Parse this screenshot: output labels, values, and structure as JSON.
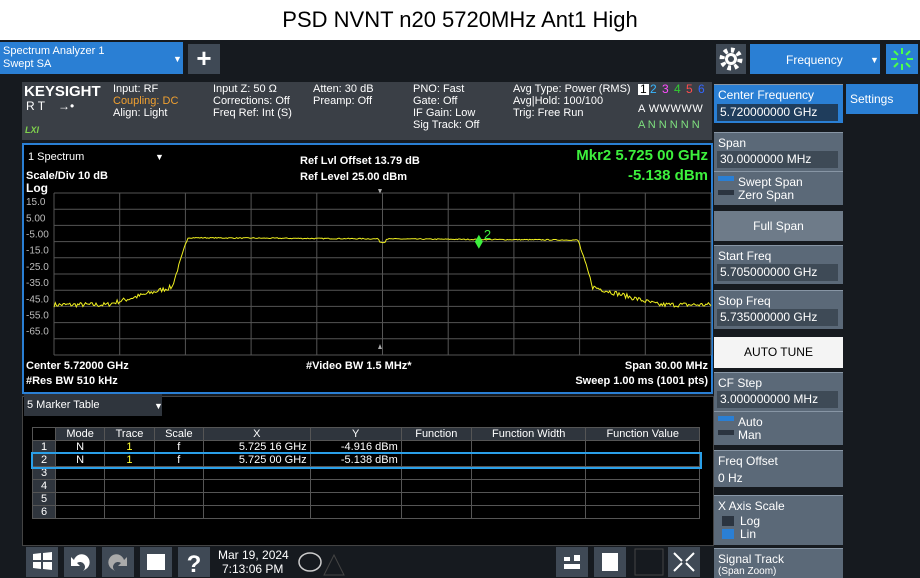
{
  "title": "PSD NVNT n20 5720MHz Ant1 High",
  "toolbar": {
    "tab_line1": "Spectrum Analyzer 1",
    "tab_line2": "Swept SA",
    "plus": "+",
    "menu": "Frequency"
  },
  "info": {
    "brand": "KEYSIGHT",
    "rt": "R  T",
    "lxi": "LXI",
    "col1": [
      "Input: RF",
      "Coupling: DC",
      "Align: Light"
    ],
    "col2": [
      "Input Z: 50 Ω",
      "Corrections: Off",
      "Freq Ref: Int (S)"
    ],
    "col3": [
      "Atten: 30 dB",
      "Preamp: Off"
    ],
    "col4": [
      "PNO: Fast",
      "Gate: Off",
      "IF Gain: Low",
      "Sig Track: Off"
    ],
    "col5": [
      "Avg Type: Power (RMS)",
      "Avg|Hold: 100/100",
      "Trig: Free Run"
    ],
    "trace_numbers": [
      "1",
      "2",
      "3",
      "4",
      "5",
      "6"
    ],
    "trace_types": "A WWWWW",
    "trace_dets": "A N N N N N"
  },
  "graph": {
    "window": "1 Spectrum",
    "scale": "Scale/Div 10 dB",
    "ref_offset": "Ref Lvl Offset 13.79 dB",
    "ref_level": "Ref Level 25.00 dBm",
    "marker_freq": "Mkr2  5.725 00 GHz",
    "marker_level": "-5.138 dBm",
    "log": "Log",
    "y_labels": [
      "15.0",
      "5.00",
      "-5.00",
      "-15.0",
      "-25.0",
      "-35.0",
      "-45.0",
      "-55.0",
      "-65.0"
    ],
    "marker_label": "2",
    "center": "Center 5.72000 GHz",
    "vbw": "#Video BW 1.5 MHz*",
    "span": "Span 30.00 MHz",
    "rbw": "#Res BW 510 kHz",
    "sweep": "Sweep 1.00 ms (1001 pts)"
  },
  "marker_table": {
    "window": "5 Marker Table",
    "headers": [
      "Mode",
      "Trace",
      "Scale",
      "X",
      "Y",
      "Function",
      "Function Width",
      "Function Value"
    ],
    "rows": [
      {
        "n": "1",
        "mode": "N",
        "trace": "1",
        "scale": "f",
        "x": "5.725 16 GHz",
        "y": "-4.916 dBm"
      },
      {
        "n": "2",
        "mode": "N",
        "trace": "1",
        "scale": "f",
        "x": "5.725 00 GHz",
        "y": "-5.138 dBm"
      },
      {
        "n": "3"
      },
      {
        "n": "4"
      },
      {
        "n": "5"
      },
      {
        "n": "6"
      }
    ]
  },
  "menu_panel": {
    "settings": "Settings",
    "center_freq_label": "Center Frequency",
    "center_freq": "5.720000000 GHz",
    "span_label": "Span",
    "span": "30.0000000 MHz",
    "swept_span": "Swept Span",
    "zero_span": "Zero Span",
    "full_span": "Full Span",
    "start_label": "Start Freq",
    "start": "5.705000000 GHz",
    "stop_label": "Stop Freq",
    "stop": "5.735000000 GHz",
    "auto_tune": "AUTO TUNE",
    "cf_step_label": "CF Step",
    "cf_step": "3.000000000 MHz",
    "auto": "Auto",
    "man": "Man",
    "offset_label": "Freq Offset",
    "offset": "0 Hz",
    "xscale_label": "X Axis Scale",
    "log": "Log",
    "lin": "Lin",
    "signal_track": "Signal Track",
    "span_zoom": "(Span Zoom)"
  },
  "taskbar": {
    "date": "Mar 19, 2024",
    "time": "7:13:06 PM",
    "help": "?"
  }
}
